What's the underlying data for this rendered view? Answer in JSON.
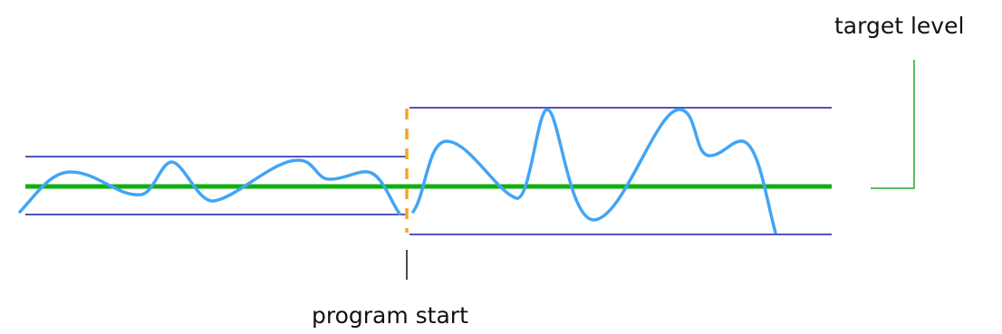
{
  "labels": {
    "target_level": "target level",
    "program_start": "program start"
  },
  "colors": {
    "background": "#ffffff",
    "signal": "#42a5f5",
    "mean_line": "#10b010",
    "control_limits": "#1a1aa8",
    "program_marker": "#f5a623",
    "callout_line": "#28a828",
    "pointer_line": "#111111"
  }
}
